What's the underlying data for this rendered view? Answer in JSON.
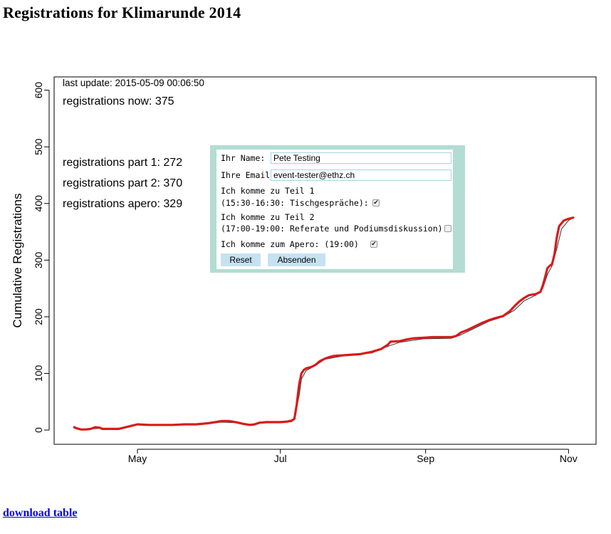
{
  "page": {
    "title": "Registrations for Klimarunde 2014",
    "download_label": "download table"
  },
  "stats": {
    "last_update": "last update: 2015-05-09 00:06:50",
    "now": "registrations now: 375",
    "part1": "registrations part 1: 272",
    "part2": "registrations part 2: 370",
    "apero": "registrations apero: 329"
  },
  "form": {
    "name_label": "Ihr Name:",
    "name_value": "Pete Testing",
    "email_label": "Ihre Email:",
    "email_value": "event-tester@ethz.ch",
    "part1_line1": "Ich komme zu Teil 1",
    "part1_line2": "(15:30-16:30: Tischgespräche):",
    "part1_checked": true,
    "part2_line1": "Ich komme zu Teil 2",
    "part2_line2": "(17:00-19:00: Referate und Podiumsdiskussion):",
    "part2_checked": false,
    "apero_label": "Ich komme zum Apero: (19:00)",
    "apero_checked": true,
    "reset_label": "Reset",
    "submit_label": "Absenden",
    "accent_color": "#b3dcd3"
  },
  "chart_data": {
    "type": "line",
    "ylabel": "Cumulative Registrations",
    "xlabel": "",
    "ylim": [
      -25,
      610
    ],
    "y_ticks": [
      0,
      100,
      200,
      300,
      400,
      500,
      600
    ],
    "x_ticks": [
      {
        "label": "May",
        "day": 0
      },
      {
        "label": "Jul",
        "day": 61
      },
      {
        "label": "Sep",
        "day": 123
      },
      {
        "label": "Nov",
        "day": 184
      }
    ],
    "grid": false,
    "series": [
      {
        "color": "#d81b1b",
        "style": "thick",
        "points": [
          [
            -27,
            5
          ],
          [
            -26,
            3
          ],
          [
            -24,
            1
          ],
          [
            -22,
            1
          ],
          [
            -20,
            2
          ],
          [
            -18,
            5
          ],
          [
            -16,
            4
          ],
          [
            -15,
            2
          ],
          [
            -12,
            2
          ],
          [
            -8,
            2
          ],
          [
            -6,
            4
          ],
          [
            -4,
            6
          ],
          [
            -2,
            8
          ],
          [
            0,
            10
          ],
          [
            5,
            9
          ],
          [
            10,
            9
          ],
          [
            15,
            9
          ],
          [
            20,
            10
          ],
          [
            25,
            10
          ],
          [
            30,
            12
          ],
          [
            33,
            14
          ],
          [
            36,
            16
          ],
          [
            39,
            16
          ],
          [
            42,
            14
          ],
          [
            45,
            11
          ],
          [
            48,
            9
          ],
          [
            50,
            10
          ],
          [
            52,
            13
          ],
          [
            55,
            14
          ],
          [
            58,
            14
          ],
          [
            61,
            14
          ],
          [
            64,
            15
          ],
          [
            66,
            17
          ],
          [
            67,
            20
          ],
          [
            68,
            45
          ],
          [
            69,
            80
          ],
          [
            70,
            100
          ],
          [
            71,
            106
          ],
          [
            72,
            109
          ],
          [
            74,
            111
          ],
          [
            76,
            115
          ],
          [
            78,
            122
          ],
          [
            80,
            126
          ],
          [
            82,
            129
          ],
          [
            84,
            131
          ],
          [
            88,
            132
          ],
          [
            95,
            134
          ],
          [
            100,
            138
          ],
          [
            104,
            143
          ],
          [
            107,
            151
          ],
          [
            108,
            156
          ],
          [
            112,
            157
          ],
          [
            115,
            160
          ],
          [
            118,
            162
          ],
          [
            122,
            163
          ],
          [
            126,
            164
          ],
          [
            130,
            164
          ],
          [
            134,
            164
          ],
          [
            136,
            166
          ],
          [
            138,
            172
          ],
          [
            141,
            177
          ],
          [
            144,
            183
          ],
          [
            147,
            189
          ],
          [
            150,
            194
          ],
          [
            153,
            198
          ],
          [
            156,
            201
          ],
          [
            159,
            210
          ],
          [
            161,
            219
          ],
          [
            163,
            227
          ],
          [
            165,
            233
          ],
          [
            167,
            238
          ],
          [
            170,
            240
          ],
          [
            172,
            244
          ],
          [
            173,
            255
          ],
          [
            174,
            270
          ],
          [
            175,
            286
          ],
          [
            176,
            290
          ],
          [
            177,
            293
          ],
          [
            178,
            310
          ],
          [
            179,
            340
          ],
          [
            180,
            360
          ],
          [
            182,
            370
          ],
          [
            184,
            373
          ],
          [
            186,
            375
          ]
        ]
      },
      {
        "color": "#333333",
        "style": "thin",
        "points": [
          [
            -27,
            4
          ],
          [
            -24,
            1
          ],
          [
            -20,
            2
          ],
          [
            -16,
            3
          ],
          [
            -12,
            2
          ],
          [
            -6,
            4
          ],
          [
            0,
            9
          ],
          [
            10,
            9
          ],
          [
            20,
            9
          ],
          [
            30,
            11
          ],
          [
            36,
            14
          ],
          [
            42,
            13
          ],
          [
            48,
            10
          ],
          [
            55,
            13
          ],
          [
            61,
            13
          ],
          [
            66,
            15
          ],
          [
            67,
            22
          ],
          [
            68,
            40
          ],
          [
            69,
            60
          ],
          [
            70,
            90
          ],
          [
            72,
            105
          ],
          [
            76,
            114
          ],
          [
            80,
            125
          ],
          [
            88,
            131
          ],
          [
            100,
            136
          ],
          [
            107,
            148
          ],
          [
            112,
            155
          ],
          [
            122,
            161
          ],
          [
            134,
            162
          ],
          [
            138,
            168
          ],
          [
            144,
            180
          ],
          [
            150,
            192
          ],
          [
            156,
            200
          ],
          [
            161,
            212
          ],
          [
            165,
            228
          ],
          [
            170,
            238
          ],
          [
            173,
            250
          ],
          [
            175,
            275
          ],
          [
            177,
            290
          ],
          [
            179,
            320
          ],
          [
            181,
            355
          ],
          [
            184,
            370
          ],
          [
            186,
            375
          ]
        ]
      }
    ]
  }
}
